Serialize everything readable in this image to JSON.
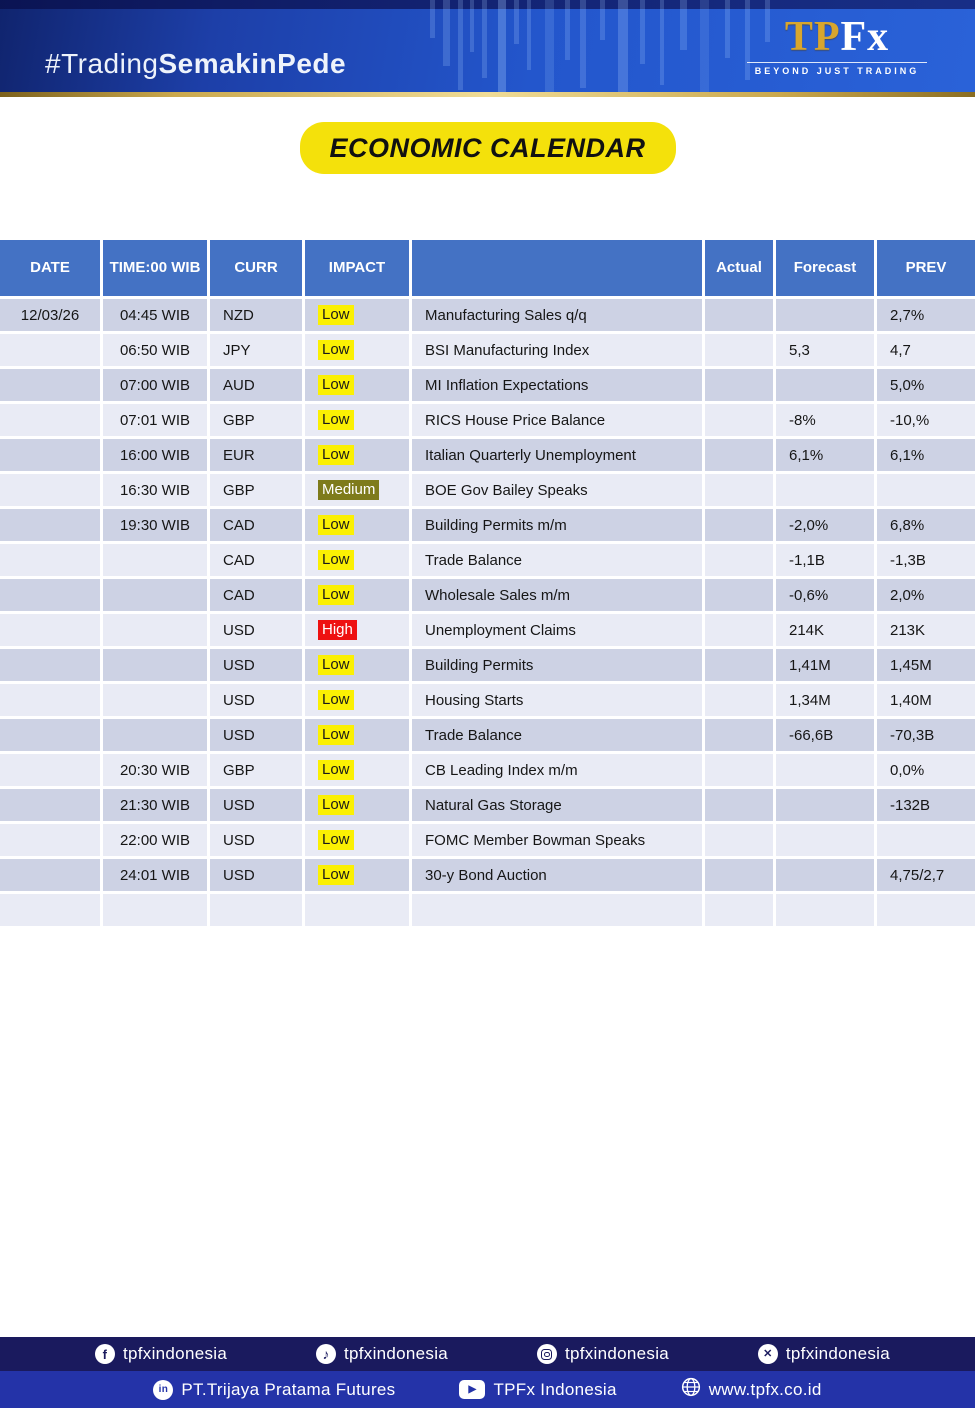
{
  "banner": {
    "hashtag_regular": "#Trading",
    "hashtag_bold": "SemakinPede",
    "logo_tp": "TP",
    "logo_fx": "Fx",
    "logo_tagline": "BEYOND JUST TRADING"
  },
  "title": {
    "label": "ECONOMIC CALENDAR"
  },
  "table": {
    "columns": [
      "DATE",
      "TIME:00 WIB",
      "CURR",
      "IMPACT",
      "",
      "Actual",
      "Forecast",
      "PREV"
    ],
    "rows": [
      {
        "date": "12/03/26",
        "time": "04:45 WIB",
        "curr": "NZD",
        "impact": "Low",
        "event": "Manufacturing Sales q/q",
        "actual": "",
        "forecast": "",
        "prev": "2,7%"
      },
      {
        "date": "",
        "time": "06:50 WIB",
        "curr": "JPY",
        "impact": "Low",
        "event": "BSI Manufacturing Index",
        "actual": "",
        "forecast": "5,3",
        "prev": "4,7"
      },
      {
        "date": "",
        "time": "07:00 WIB",
        "curr": "AUD",
        "impact": "Low",
        "event": "MI Inflation Expectations",
        "actual": "",
        "forecast": "",
        "prev": "5,0%"
      },
      {
        "date": "",
        "time": "07:01 WIB",
        "curr": "GBP",
        "impact": "Low",
        "event": "RICS House Price Balance",
        "actual": "",
        "forecast": "-8%",
        "prev": "-10,%"
      },
      {
        "date": "",
        "time": "16:00 WIB",
        "curr": "EUR",
        "impact": "Low",
        "event": "Italian Quarterly Unemployment",
        "actual": "",
        "forecast": "6,1%",
        "prev": "6,1%"
      },
      {
        "date": "",
        "time": "16:30 WIB",
        "curr": "GBP",
        "impact": "Medium",
        "event": "BOE Gov Bailey Speaks",
        "actual": "",
        "forecast": "",
        "prev": ""
      },
      {
        "date": "",
        "time": "19:30 WIB",
        "curr": "CAD",
        "impact": "Low",
        "event": "Building Permits m/m",
        "actual": "",
        "forecast": "-2,0%",
        "prev": "6,8%"
      },
      {
        "date": "",
        "time": "",
        "curr": "CAD",
        "impact": "Low",
        "event": "Trade Balance",
        "actual": "",
        "forecast": "-1,1B",
        "prev": "-1,3B"
      },
      {
        "date": "",
        "time": "",
        "curr": "CAD",
        "impact": "Low",
        "event": "Wholesale Sales m/m",
        "actual": "",
        "forecast": "-0,6%",
        "prev": "2,0%"
      },
      {
        "date": "",
        "time": "",
        "curr": "USD",
        "impact": "High",
        "event": "Unemployment Claims",
        "actual": "",
        "forecast": "214K",
        "prev": "213K"
      },
      {
        "date": "",
        "time": "",
        "curr": "USD",
        "impact": "Low",
        "event": "Building Permits",
        "actual": "",
        "forecast": "1,41M",
        "prev": "1,45M"
      },
      {
        "date": "",
        "time": "",
        "curr": "USD",
        "impact": "Low",
        "event": "Housing Starts",
        "actual": "",
        "forecast": "1,34M",
        "prev": "1,40M"
      },
      {
        "date": "",
        "time": "",
        "curr": "USD",
        "impact": "Low",
        "event": "Trade Balance",
        "actual": "",
        "forecast": "-66,6B",
        "prev": "-70,3B"
      },
      {
        "date": "",
        "time": "20:30 WIB",
        "curr": "GBP",
        "impact": "Low",
        "event": "CB Leading Index m/m",
        "actual": "",
        "forecast": "",
        "prev": "0,0%"
      },
      {
        "date": "",
        "time": "21:30 WIB",
        "curr": "USD",
        "impact": "Low",
        "event": "Natural Gas Storage",
        "actual": "",
        "forecast": "",
        "prev": "-132B"
      },
      {
        "date": "",
        "time": "22:00 WIB",
        "curr": "USD",
        "impact": "Low",
        "event": "FOMC Member Bowman Speaks",
        "actual": "",
        "forecast": "",
        "prev": ""
      },
      {
        "date": "",
        "time": "24:01 WIB",
        "curr": "USD",
        "impact": "Low",
        "event": "30-y Bond Auction",
        "actual": "",
        "forecast": "",
        "prev": "4,75/2,7"
      },
      {
        "date": "",
        "time": "",
        "curr": "",
        "impact": "",
        "event": "",
        "actual": "",
        "forecast": "",
        "prev": ""
      }
    ]
  },
  "footer": {
    "row1": [
      {
        "icon": "facebook-icon",
        "label": "tpfxindonesia"
      },
      {
        "icon": "tiktok-icon",
        "label": "tpfxindonesia"
      },
      {
        "icon": "instagram-icon",
        "label": "tpfxindonesia"
      },
      {
        "icon": "x-icon",
        "label": "tpfxindonesia"
      }
    ],
    "row2": [
      {
        "icon": "linkedin-icon",
        "label": "PT.Trijaya Pratama Futures"
      },
      {
        "icon": "youtube-icon",
        "label": "TPFx Indonesia"
      },
      {
        "icon": "globe-icon",
        "label": "www.tpfx.co.id"
      }
    ]
  },
  "colors": {
    "header_blue": "#4472C4",
    "row_dark": "#CDD2E4",
    "row_light": "#E9EBF5",
    "impact_low_bg": "#FBF003",
    "impact_medium_bg": "#7E7B1B",
    "impact_high_bg": "#EE1111",
    "accent_gold": "#D8A62E",
    "footer_top_bg": "#1A1A5E",
    "footer_bottom_bg": "#2433A8",
    "title_bg": "#F4E10B"
  }
}
